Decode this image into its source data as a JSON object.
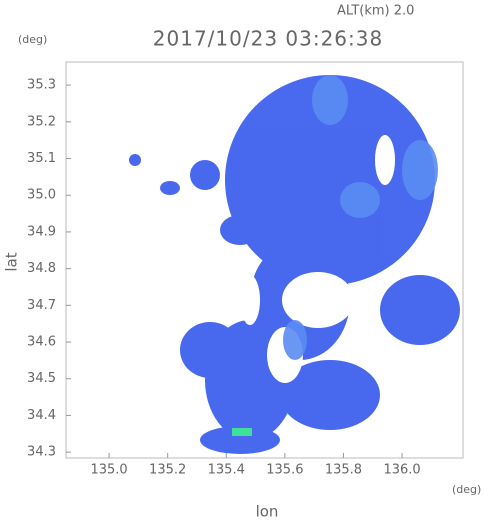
{
  "chart_data": {
    "type": "radar-map",
    "title": "2017/10/23 03:26:38",
    "altitude_label": "ALT(km) 2.0",
    "y_unit": "(deg)",
    "x_unit": "(deg)",
    "x_label": "lon",
    "y_label": "lat",
    "xlim": [
      134.853,
      136.208
    ],
    "ylim": [
      34.284,
      35.363
    ],
    "xticks": [
      {
        "value": 135,
        "label": "135.0"
      },
      135.2,
      135.4,
      135.6,
      135.8,
      {
        "value": 136,
        "label": "136.0"
      }
    ],
    "yticks": [
      {
        "value": 34.3,
        "label": "34.3"
      },
      34.4,
      34.5,
      34.6,
      34.7,
      34.8,
      34.9,
      {
        "value": 35,
        "label": "35.0"
      },
      35.1,
      35.2,
      35.3
    ]
  }
}
